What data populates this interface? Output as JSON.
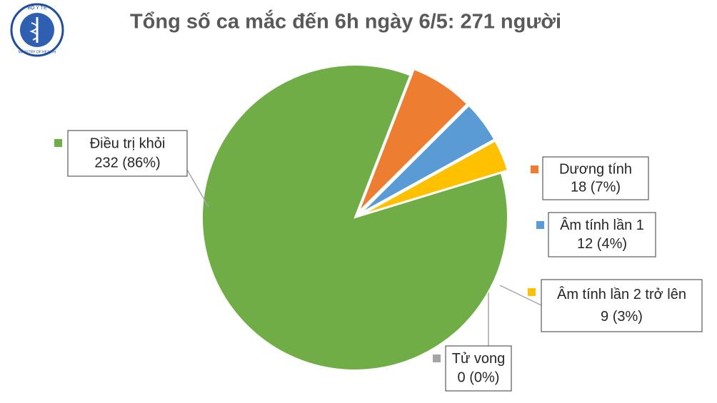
{
  "logo": {
    "top": "BỘ Y TẾ",
    "bottom": "MINISTRY OF HEALTH"
  },
  "chart_data": {
    "type": "pie",
    "title": "Tổng số ca mắc đến 6h ngày 6/5: 271 người",
    "categories": [
      "Điều trị khỏi",
      "Dương tính",
      "Âm tính lần 1",
      "Âm tính lần 2 trở lên",
      "Tử vong"
    ],
    "values": [
      232,
      18,
      12,
      9,
      0
    ],
    "value_labels": [
      "232 (86%)",
      "18 (7%)",
      "12 (4%)",
      "9 (3%)",
      "0 (0%)"
    ],
    "colors": [
      "#70ad47",
      "#ed7d31",
      "#5b9bd5",
      "#ffc000",
      "#a5a5a5"
    ]
  }
}
